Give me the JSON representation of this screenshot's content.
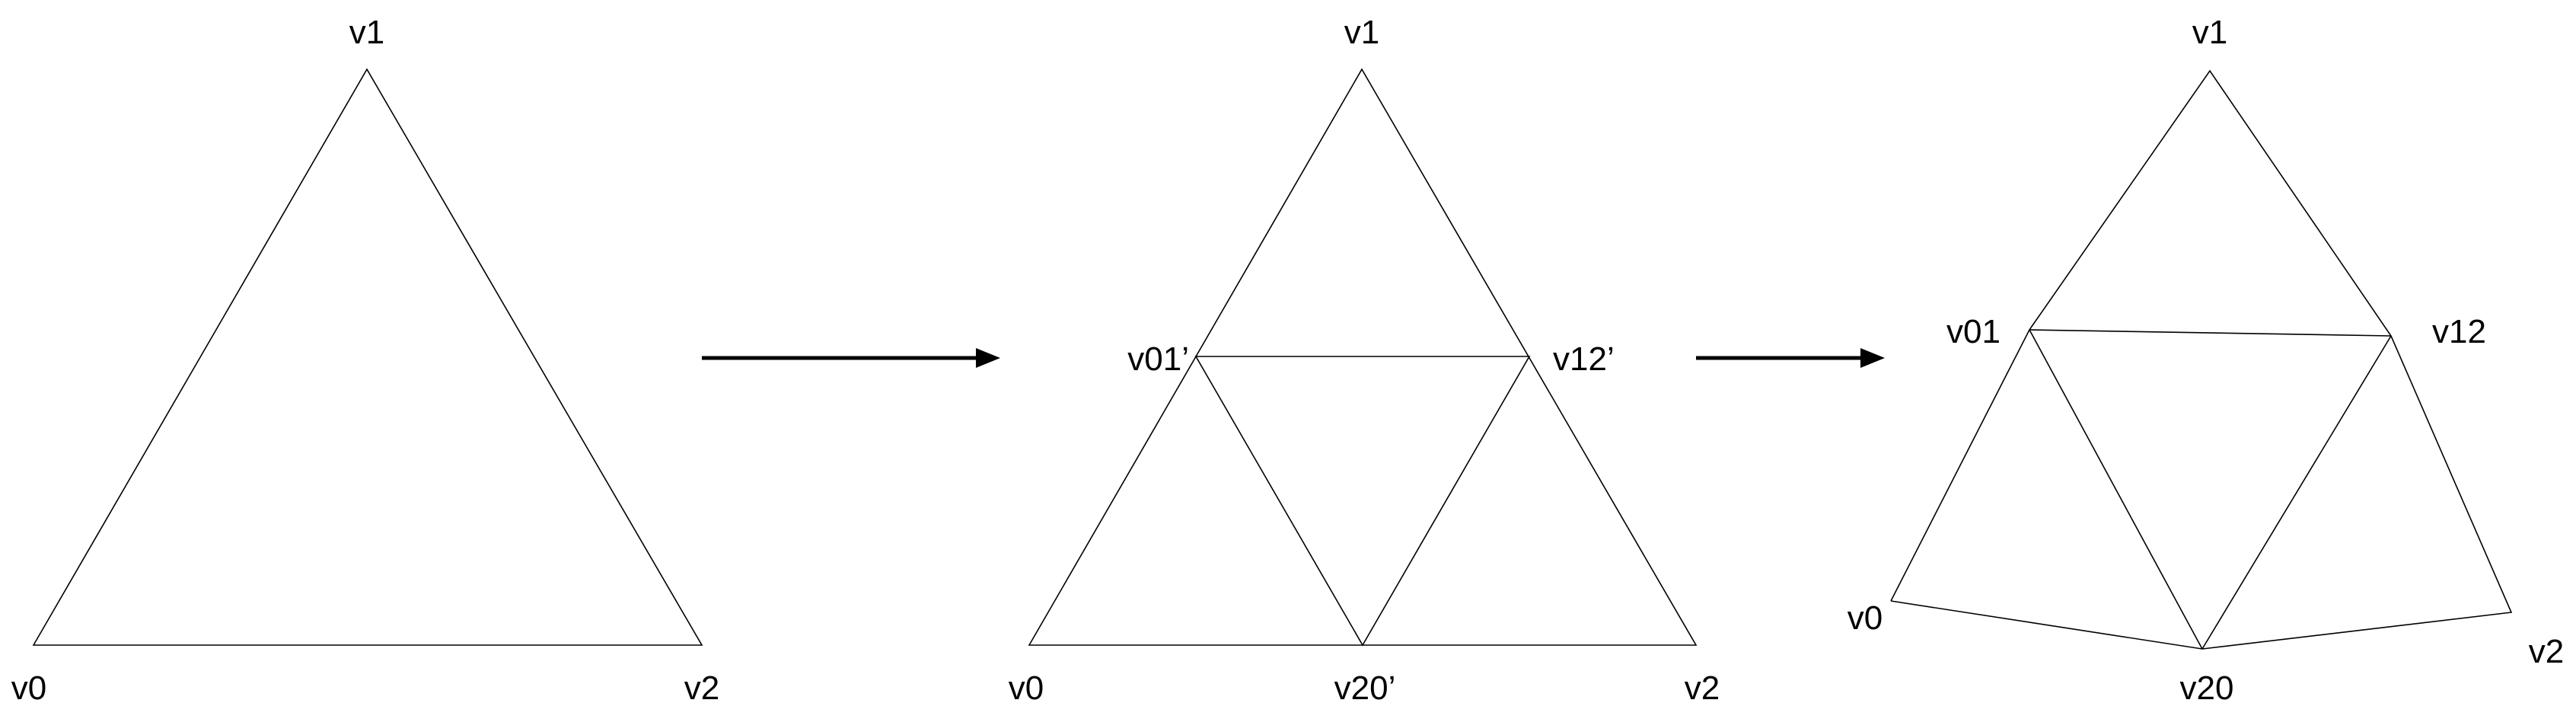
{
  "panels": [
    {
      "labels": {
        "v0": "v0",
        "v1": "v1",
        "v2": "v2"
      }
    },
    {
      "labels": {
        "v0": "v0",
        "v1": "v1",
        "v2": "v2",
        "v01": "v01’",
        "v12": "v12’",
        "v20": "v20’"
      }
    },
    {
      "labels": {
        "v0": "v0",
        "v1": "v1",
        "v2": "v2",
        "v01": "v01",
        "v12": "v12",
        "v20": "v20"
      }
    }
  ],
  "colors": {
    "stroke": "#000000",
    "background": "#ffffff"
  }
}
